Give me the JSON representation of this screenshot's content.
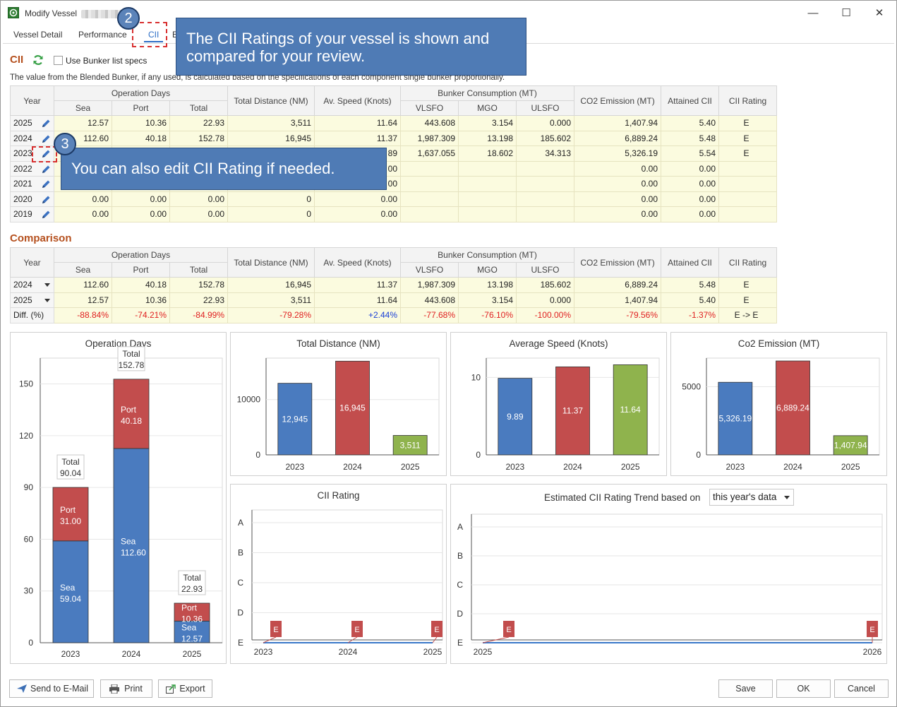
{
  "window": {
    "title": "Modify Vessel",
    "minimize": "—",
    "maximize": "☐",
    "close": "✕"
  },
  "tabs": [
    "Vessel Detail",
    "Performance",
    "CII",
    "E"
  ],
  "cii": {
    "title": "CII",
    "use_bunker_label": "Use Bunker list specs",
    "note": "The value from the Blended Bunker, if any used, is calculated based on the specifications of each component single bunker proportionally.",
    "headers": {
      "year": "Year",
      "operation_days": "Operation Days",
      "sea": "Sea",
      "port": "Port",
      "total": "Total",
      "total_distance": "Total Distance (NM)",
      "av_speed": "Av. Speed (Knots)",
      "bunker": "Bunker Consumption (MT)",
      "vlsfo": "VLSFO",
      "mgo": "MGO",
      "ulsfo": "ULSFO",
      "co2": "CO2 Emission (MT)",
      "attained": "Attained CII",
      "rating": "CII Rating"
    },
    "rows": [
      [
        "2025",
        "12.57",
        "10.36",
        "22.93",
        "3,511",
        "11.64",
        "443.608",
        "3.154",
        "0.000",
        "1,407.94",
        "5.40",
        "E"
      ],
      [
        "2024",
        "112.60",
        "40.18",
        "152.78",
        "16,945",
        "11.37",
        "1,987.309",
        "13.198",
        "185.602",
        "6,889.24",
        "5.48",
        "E"
      ],
      [
        "2023",
        "",
        "",
        "",
        "",
        "89",
        "1,637.055",
        "18.602",
        "34.313",
        "5,326.19",
        "5.54",
        "E"
      ],
      [
        "2022",
        "",
        "",
        "",
        "",
        "00",
        "",
        "",
        "",
        "0.00",
        "0.00",
        ""
      ],
      [
        "2021",
        "",
        "",
        "",
        "",
        "00",
        "",
        "",
        "",
        "0.00",
        "0.00",
        ""
      ],
      [
        "2020",
        "0.00",
        "0.00",
        "0.00",
        "0",
        "0.00",
        "",
        "",
        "",
        "0.00",
        "0.00",
        ""
      ],
      [
        "2019",
        "0.00",
        "0.00",
        "0.00",
        "0",
        "0.00",
        "",
        "",
        "",
        "0.00",
        "0.00",
        ""
      ]
    ]
  },
  "comparison": {
    "title": "Comparison",
    "rows": [
      [
        "2024",
        "112.60",
        "40.18",
        "152.78",
        "16,945",
        "11.37",
        "1,987.309",
        "13.198",
        "185.602",
        "6,889.24",
        "5.48",
        "E"
      ],
      [
        "2025",
        "12.57",
        "10.36",
        "22.93",
        "3,511",
        "11.64",
        "443.608",
        "3.154",
        "0.000",
        "1,407.94",
        "5.40",
        "E"
      ]
    ],
    "diff": [
      "Diff. (%)",
      "-88.84%",
      "-74.21%",
      "-84.99%",
      "-79.28%",
      "+2.44%",
      "-77.68%",
      "-76.10%",
      "-100.00%",
      "-79.56%",
      "-1.37%",
      "E -> E"
    ]
  },
  "callouts": {
    "c2": "The CII Ratings of your vessel is shown and compared for your review.",
    "c3": "You can also edit CII Rating if needed.",
    "badge2": "2",
    "badge3": "3"
  },
  "chart_data": [
    {
      "type": "bar",
      "stacked": true,
      "title": "Operation Days",
      "categories": [
        "2023",
        "2024",
        "2025"
      ],
      "series": [
        {
          "name": "Sea",
          "values": [
            59.04,
            112.6,
            12.57
          ],
          "labels": [
            "Sea\n59.04",
            "Sea\n112.60",
            "Sea\n12.57"
          ],
          "color": "#4a7bbf"
        },
        {
          "name": "Port",
          "values": [
            31.0,
            40.18,
            10.36
          ],
          "labels": [
            "Port\n31.00",
            "Port\n40.18",
            "Port\n10.36"
          ],
          "color": "#c24d4d"
        }
      ],
      "totals": [
        "Total\n90.04",
        "Total\n152.78",
        "Total\n22.93"
      ],
      "yticks": [
        "0",
        "30",
        "60",
        "90",
        "120",
        "150"
      ],
      "ylim": [
        0,
        165
      ]
    },
    {
      "type": "bar",
      "title": "Total Distance (NM)",
      "categories": [
        "2023",
        "2024",
        "2025"
      ],
      "values": [
        12945,
        16945,
        3511
      ],
      "labels": [
        "12,945",
        "16,945",
        "3,511"
      ],
      "colors": [
        "#4a7bbf",
        "#c24d4d",
        "#8fb34d"
      ],
      "yticks": [
        "0",
        "10000"
      ],
      "ylim": [
        0,
        17500
      ]
    },
    {
      "type": "bar",
      "title": "Average Speed (Knots)",
      "categories": [
        "2023",
        "2024",
        "2025"
      ],
      "values": [
        9.89,
        11.37,
        11.64
      ],
      "labels": [
        "9.89",
        "11.37",
        "11.64"
      ],
      "colors": [
        "#4a7bbf",
        "#c24d4d",
        "#8fb34d"
      ],
      "yticks": [
        "0",
        "10"
      ],
      "ylim": [
        0,
        12.5
      ]
    },
    {
      "type": "bar",
      "title": "Co2 Emission (MT)",
      "categories": [
        "2023",
        "2024",
        "2025"
      ],
      "values": [
        5326.19,
        6889.24,
        1407.94
      ],
      "labels": [
        "5,326.19",
        "6,889.24",
        "1,407.94"
      ],
      "colors": [
        "#4a7bbf",
        "#c24d4d",
        "#8fb34d"
      ],
      "yticks": [
        "0",
        "5000"
      ],
      "ylim": [
        0,
        7100
      ]
    },
    {
      "type": "line",
      "title": "CII Rating",
      "x": [
        "2023",
        "2024",
        "2025"
      ],
      "values": [
        "E",
        "E",
        "E"
      ],
      "yticks": [
        "A",
        "B",
        "C",
        "D",
        "E"
      ]
    },
    {
      "type": "line",
      "title": "Estimated CII Rating Trend based on",
      "dropdown": "this year's data",
      "x": [
        "2025",
        "2026"
      ],
      "values": [
        "E",
        "E"
      ],
      "yticks": [
        "A",
        "B",
        "C",
        "D",
        "E"
      ]
    }
  ],
  "buttons": {
    "email": "Send to E-Mail",
    "print": "Print",
    "export": "Export",
    "save": "Save",
    "ok": "OK",
    "cancel": "Cancel"
  }
}
